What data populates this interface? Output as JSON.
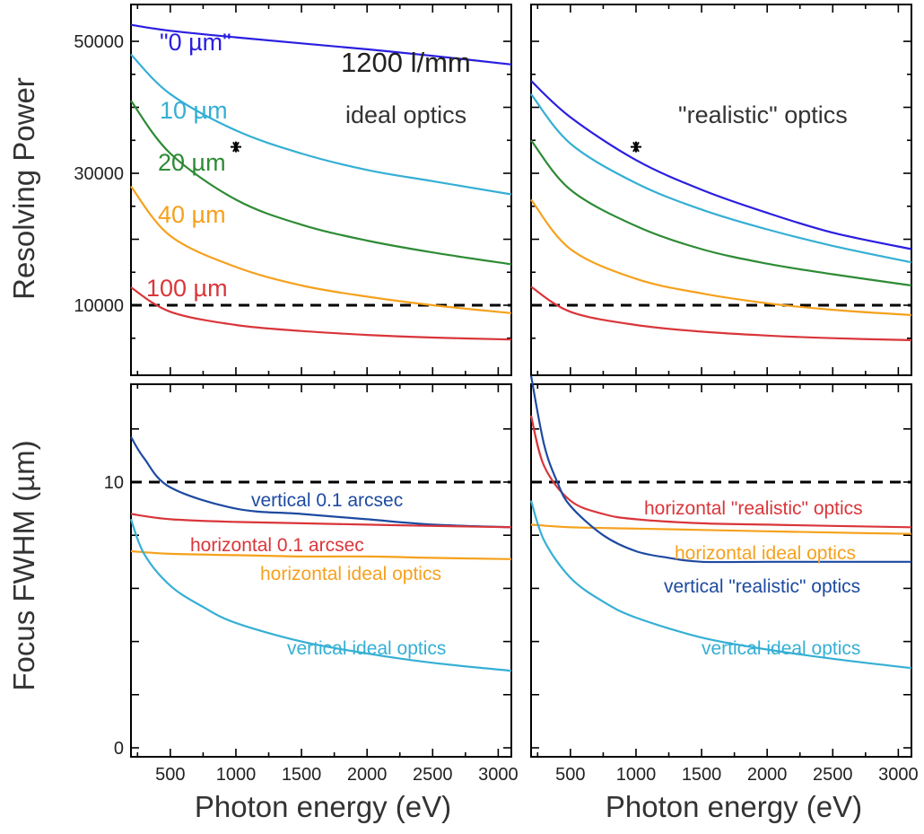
{
  "colors": {
    "dark_blue": "#2a1ee0",
    "light_blue": "#35afd4",
    "green": "#2e8b35",
    "orange": "#f5a11d",
    "red": "#d9363a",
    "navy": "#1d4aa0",
    "threshold": "#000000"
  },
  "chart_data": [
    {
      "type": "line",
      "panel": "top-left",
      "xlabel": "",
      "ylabel": "Resolving Power",
      "xlim": [
        200,
        3100
      ],
      "ylim": [
        0,
        53000
      ],
      "yticks": [
        10000,
        30000,
        50000
      ],
      "ytick_labels": [
        "10000",
        "30000",
        "50000"
      ],
      "xticks": [
        500,
        1000,
        1500,
        2000,
        2500,
        3000
      ],
      "annotations": [
        "1200 l/mm",
        "ideal optics"
      ],
      "series": [
        {
          "name": "\"0 µm\"",
          "color": "dark_blue",
          "x": [
            200,
            500,
            1000,
            1500,
            2000,
            2500,
            3100
          ],
          "y": [
            52500,
            51600,
            50600,
            49700,
            48800,
            47800,
            46500
          ]
        },
        {
          "name": "10 µm",
          "color": "light_blue",
          "x": [
            200,
            500,
            1000,
            1500,
            2000,
            2500,
            3100
          ],
          "y": [
            48000,
            42000,
            36500,
            33000,
            30500,
            28800,
            26800
          ]
        },
        {
          "name": "20 µm",
          "color": "green",
          "x": [
            200,
            500,
            1000,
            1500,
            2000,
            2500,
            3100
          ],
          "y": [
            41000,
            33000,
            26000,
            22200,
            19800,
            18000,
            16200
          ]
        },
        {
          "name": "40 µm",
          "color": "orange",
          "x": [
            200,
            500,
            1000,
            1500,
            2000,
            2500,
            3100
          ],
          "y": [
            28000,
            20500,
            15800,
            13000,
            11300,
            10000,
            8800
          ]
        },
        {
          "name": "100 µm",
          "color": "red",
          "x": [
            200,
            500,
            1000,
            1500,
            2000,
            2500,
            3100
          ],
          "y": [
            12700,
            9000,
            7000,
            6100,
            5500,
            5100,
            4800
          ]
        }
      ],
      "threshold": {
        "y": 10000
      },
      "markers": [
        {
          "x": 1000,
          "y": 34000,
          "symbol": "*"
        }
      ]
    },
    {
      "type": "line",
      "panel": "top-right",
      "xlabel": "",
      "ylabel": "",
      "xlim": [
        200,
        3100
      ],
      "ylim": [
        0,
        53000
      ],
      "yticks": [
        10000,
        30000,
        50000
      ],
      "xticks": [
        500,
        1000,
        1500,
        2000,
        2500,
        3000
      ],
      "annotations": [
        "\"realistic\" optics"
      ],
      "series": [
        {
          "color": "dark_blue",
          "x": [
            200,
            500,
            1000,
            1500,
            2000,
            2500,
            3100
          ],
          "y": [
            44000,
            38500,
            32000,
            27500,
            24000,
            21000,
            18500
          ]
        },
        {
          "color": "light_blue",
          "x": [
            200,
            500,
            1000,
            1500,
            2000,
            2500,
            3100
          ],
          "y": [
            42000,
            34500,
            28500,
            24500,
            21500,
            19000,
            16500
          ]
        },
        {
          "color": "green",
          "x": [
            200,
            500,
            1000,
            1500,
            2000,
            2500,
            3100
          ],
          "y": [
            35000,
            27500,
            22000,
            18500,
            16300,
            14700,
            13000
          ]
        },
        {
          "color": "orange",
          "x": [
            200,
            500,
            1000,
            1500,
            2000,
            2500,
            3100
          ],
          "y": [
            26000,
            18500,
            14000,
            11800,
            10300,
            9300,
            8500
          ]
        },
        {
          "color": "red",
          "x": [
            200,
            500,
            1000,
            1500,
            2000,
            2500,
            3100
          ],
          "y": [
            12800,
            9000,
            7000,
            6000,
            5400,
            5000,
            4700
          ]
        }
      ],
      "threshold": {
        "y": 10000
      },
      "markers": [
        {
          "x": 1000,
          "y": 34000,
          "symbol": "*"
        }
      ]
    },
    {
      "type": "line",
      "panel": "bottom-left",
      "xlabel": "Photon energy (eV)",
      "ylabel": "Focus FWHM (µm)",
      "xlim": [
        200,
        3100
      ],
      "ylim": [
        0,
        14
      ],
      "yticks": [
        0,
        10
      ],
      "ytick_labels": [
        "0",
        "10"
      ],
      "xticks": [
        500,
        1000,
        1500,
        2000,
        2500,
        3000
      ],
      "xtick_labels": [
        "500",
        "1000",
        "1500",
        "2000",
        "2500",
        "3000"
      ],
      "series": [
        {
          "name": "vertical 0.1 arcsec",
          "color": "navy",
          "x": [
            200,
            300,
            500,
            1000,
            1500,
            2000,
            2500,
            3100
          ],
          "y": [
            11.7,
            10.9,
            9.8,
            9.0,
            8.8,
            8.6,
            8.4,
            8.3
          ]
        },
        {
          "name": "horizontal 0.1 arcsec",
          "color": "red",
          "x": [
            200,
            500,
            1000,
            1500,
            2000,
            2500,
            3100
          ],
          "y": [
            8.8,
            8.6,
            8.5,
            8.45,
            8.4,
            8.35,
            8.3
          ]
        },
        {
          "name": "horizontal ideal optics",
          "color": "orange",
          "x": [
            200,
            500,
            1000,
            1500,
            2000,
            2500,
            3100
          ],
          "y": [
            7.4,
            7.3,
            7.25,
            7.2,
            7.2,
            7.15,
            7.1
          ]
        },
        {
          "name": "vertical ideal optics",
          "color": "light_blue",
          "x": [
            200,
            300,
            500,
            750,
            1000,
            1500,
            2000,
            2500,
            3100
          ],
          "y": [
            8.6,
            7.3,
            6.1,
            5.3,
            4.7,
            4.0,
            3.55,
            3.2,
            2.9
          ]
        }
      ],
      "threshold": {
        "y": 10
      }
    },
    {
      "type": "line",
      "panel": "bottom-right",
      "xlabel": "Photon energy (eV)",
      "ylabel": "",
      "xlim": [
        200,
        3100
      ],
      "ylim": [
        0,
        14
      ],
      "yticks": [
        0,
        10
      ],
      "xticks": [
        500,
        1000,
        1500,
        2000,
        2500,
        3000
      ],
      "xtick_labels": [
        "500",
        "1000",
        "1500",
        "2000",
        "2500",
        "3000"
      ],
      "series": [
        {
          "name": "horizontal \"realistic\" optics",
          "color": "red",
          "x": [
            200,
            300,
            500,
            750,
            1000,
            1500,
            2000,
            2500,
            3100
          ],
          "y": [
            12.5,
            10.6,
            9.3,
            8.8,
            8.6,
            8.45,
            8.4,
            8.35,
            8.3
          ]
        },
        {
          "name": "horizontal ideal optics",
          "color": "orange",
          "x": [
            200,
            500,
            1000,
            1500,
            2000,
            2500,
            3100
          ],
          "y": [
            8.4,
            8.3,
            8.25,
            8.2,
            8.15,
            8.1,
            8.05
          ]
        },
        {
          "name": "vertical \"realistic\" optics",
          "color": "navy",
          "x": [
            200,
            300,
            400,
            500,
            750,
            1000,
            1250,
            1500,
            2000,
            2500,
            3100
          ],
          "y": [
            14.0,
            11.4,
            10.0,
            9.1,
            8.0,
            7.4,
            7.15,
            7.0,
            7.0,
            7.0,
            7.0
          ]
        },
        {
          "name": "vertical ideal optics",
          "color": "light_blue",
          "x": [
            200,
            300,
            500,
            750,
            1000,
            1500,
            2000,
            2500,
            3100
          ],
          "y": [
            9.3,
            7.8,
            6.4,
            5.5,
            4.9,
            4.15,
            3.7,
            3.35,
            3.0
          ]
        }
      ],
      "threshold": {
        "y": 10
      }
    }
  ],
  "labels": {
    "top_left": [
      {
        "text": "\"0 µm\"",
        "color": "dark_blue"
      },
      {
        "text": "10 µm",
        "color": "light_blue"
      },
      {
        "text": "20 µm",
        "color": "green"
      },
      {
        "text": "40 µm",
        "color": "orange"
      },
      {
        "text": "100 µm",
        "color": "red"
      }
    ]
  }
}
